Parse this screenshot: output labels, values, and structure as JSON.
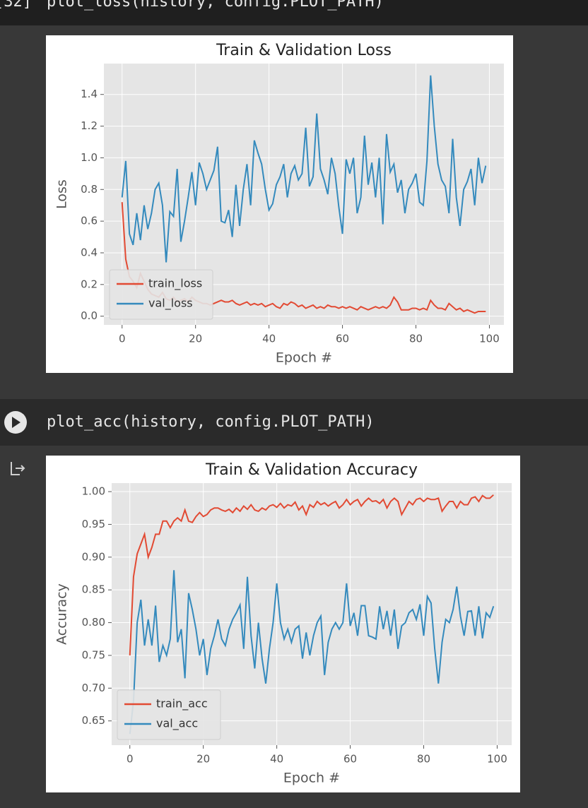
{
  "cells": [
    {
      "execution_count": "[32]",
      "code": "plot_loss(history, config.PLOT_PATH)"
    },
    {
      "code": "plot_acc(history, config.PLOT_PATH)"
    }
  ],
  "chart_data": [
    {
      "type": "line",
      "title": "Train & Validation Loss",
      "xlabel": "Epoch #",
      "ylabel": "Loss",
      "x": [
        0,
        1,
        2,
        3,
        4,
        5,
        6,
        7,
        8,
        9,
        10,
        11,
        12,
        13,
        14,
        15,
        16,
        17,
        18,
        19,
        20,
        21,
        22,
        23,
        24,
        25,
        26,
        27,
        28,
        29,
        30,
        31,
        32,
        33,
        34,
        35,
        36,
        37,
        38,
        39,
        40,
        41,
        42,
        43,
        44,
        45,
        46,
        47,
        48,
        49,
        50,
        51,
        52,
        53,
        54,
        55,
        56,
        57,
        58,
        59,
        60,
        61,
        62,
        63,
        64,
        65,
        66,
        67,
        68,
        69,
        70,
        71,
        72,
        73,
        74,
        75,
        76,
        77,
        78,
        79,
        80,
        81,
        82,
        83,
        84,
        85,
        86,
        87,
        88,
        89,
        90,
        91,
        92,
        93,
        94,
        95,
        96,
        97,
        98,
        99
      ],
      "series": [
        {
          "name": "train_loss",
          "color": "#E24A33",
          "values": [
            0.72,
            0.36,
            0.25,
            0.22,
            0.18,
            0.27,
            0.22,
            0.17,
            0.14,
            0.13,
            0.12,
            0.15,
            0.11,
            0.1,
            0.12,
            0.09,
            0.1,
            0.11,
            0.09,
            0.12,
            0.1,
            0.09,
            0.08,
            0.08,
            0.07,
            0.08,
            0.09,
            0.1,
            0.09,
            0.09,
            0.1,
            0.08,
            0.07,
            0.08,
            0.09,
            0.07,
            0.08,
            0.07,
            0.08,
            0.06,
            0.07,
            0.08,
            0.06,
            0.05,
            0.08,
            0.07,
            0.09,
            0.08,
            0.06,
            0.07,
            0.05,
            0.06,
            0.07,
            0.05,
            0.06,
            0.05,
            0.07,
            0.06,
            0.06,
            0.05,
            0.06,
            0.05,
            0.06,
            0.05,
            0.04,
            0.06,
            0.05,
            0.04,
            0.05,
            0.06,
            0.05,
            0.06,
            0.05,
            0.07,
            0.12,
            0.09,
            0.04,
            0.04,
            0.04,
            0.05,
            0.05,
            0.04,
            0.05,
            0.04,
            0.1,
            0.07,
            0.05,
            0.05,
            0.04,
            0.08,
            0.06,
            0.04,
            0.05,
            0.03,
            0.04,
            0.03,
            0.02,
            0.03,
            0.03,
            0.03
          ]
        },
        {
          "name": "val_loss",
          "color": "#348ABD",
          "values": [
            0.75,
            0.98,
            0.52,
            0.45,
            0.65,
            0.48,
            0.7,
            0.55,
            0.65,
            0.8,
            0.84,
            0.7,
            0.34,
            0.66,
            0.63,
            0.93,
            0.47,
            0.6,
            0.75,
            0.91,
            0.7,
            0.97,
            0.9,
            0.8,
            0.86,
            0.92,
            1.07,
            0.6,
            0.59,
            0.67,
            0.5,
            0.83,
            0.57,
            0.8,
            0.96,
            0.7,
            1.11,
            1.03,
            0.96,
            0.8,
            0.67,
            0.71,
            0.83,
            0.88,
            0.96,
            0.75,
            0.9,
            0.95,
            0.86,
            0.9,
            1.19,
            0.82,
            0.88,
            1.28,
            0.93,
            0.86,
            0.77,
            1.0,
            0.9,
            0.69,
            0.52,
            0.99,
            0.9,
            1.0,
            0.65,
            0.75,
            1.14,
            0.83,
            0.97,
            0.75,
            1.0,
            0.58,
            1.15,
            0.91,
            0.96,
            0.78,
            0.86,
            0.65,
            0.8,
            0.84,
            0.9,
            0.72,
            0.7,
            0.98,
            1.52,
            1.2,
            0.96,
            0.86,
            0.82,
            0.65,
            1.12,
            0.75,
            0.57,
            0.8,
            0.85,
            0.93,
            0.7,
            1.0,
            0.84,
            0.95
          ]
        }
      ],
      "xlim": [
        -4.95,
        103.95
      ],
      "ylim": [
        -0.055,
        1.595
      ],
      "xticks": [
        0,
        20,
        40,
        60,
        80,
        100
      ],
      "yticks": [
        {
          "value": 0,
          "label": "0.0"
        },
        0.2,
        0.4,
        0.6,
        0.8,
        {
          "value": 1,
          "label": "1.0"
        },
        1.2,
        1.4
      ],
      "grid": true,
      "legend": "lower left"
    },
    {
      "type": "line",
      "title": "Train & Validation Accuracy",
      "xlabel": "Epoch #",
      "ylabel": "Accuracy",
      "x": [
        0,
        1,
        2,
        3,
        4,
        5,
        6,
        7,
        8,
        9,
        10,
        11,
        12,
        13,
        14,
        15,
        16,
        17,
        18,
        19,
        20,
        21,
        22,
        23,
        24,
        25,
        26,
        27,
        28,
        29,
        30,
        31,
        32,
        33,
        34,
        35,
        36,
        37,
        38,
        39,
        40,
        41,
        42,
        43,
        44,
        45,
        46,
        47,
        48,
        49,
        50,
        51,
        52,
        53,
        54,
        55,
        56,
        57,
        58,
        59,
        60,
        61,
        62,
        63,
        64,
        65,
        66,
        67,
        68,
        69,
        70,
        71,
        72,
        73,
        74,
        75,
        76,
        77,
        78,
        79,
        80,
        81,
        82,
        83,
        84,
        85,
        86,
        87,
        88,
        89,
        90,
        91,
        92,
        93,
        94,
        95,
        96,
        97,
        98,
        99
      ],
      "series": [
        {
          "name": "train_acc",
          "color": "#E24A33",
          "values": [
            0.75,
            0.87,
            0.905,
            0.92,
            0.935,
            0.9,
            0.915,
            0.935,
            0.935,
            0.955,
            0.955,
            0.945,
            0.955,
            0.96,
            0.955,
            0.972,
            0.955,
            0.953,
            0.962,
            0.968,
            0.962,
            0.965,
            0.972,
            0.975,
            0.975,
            0.972,
            0.97,
            0.973,
            0.968,
            0.975,
            0.97,
            0.978,
            0.973,
            0.98,
            0.972,
            0.97,
            0.975,
            0.972,
            0.978,
            0.98,
            0.976,
            0.982,
            0.975,
            0.98,
            0.978,
            0.984,
            0.972,
            0.978,
            0.965,
            0.98,
            0.976,
            0.985,
            0.98,
            0.983,
            0.978,
            0.982,
            0.985,
            0.975,
            0.98,
            0.988,
            0.98,
            0.985,
            0.988,
            0.978,
            0.985,
            0.99,
            0.985,
            0.986,
            0.982,
            0.988,
            0.975,
            0.985,
            0.99,
            0.985,
            0.965,
            0.975,
            0.985,
            0.98,
            0.988,
            0.99,
            0.985,
            0.99,
            0.988,
            0.988,
            0.99,
            0.97,
            0.978,
            0.985,
            0.985,
            0.975,
            0.985,
            0.98,
            0.98,
            0.99,
            0.992,
            0.985,
            0.994,
            0.99,
            0.99,
            0.995
          ]
        },
        {
          "name": "val_acc",
          "color": "#348ABD",
          "values": [
            0.63,
            0.68,
            0.8,
            0.835,
            0.765,
            0.805,
            0.765,
            0.826,
            0.74,
            0.765,
            0.75,
            0.775,
            0.88,
            0.77,
            0.79,
            0.715,
            0.845,
            0.82,
            0.79,
            0.75,
            0.775,
            0.72,
            0.76,
            0.78,
            0.805,
            0.775,
            0.765,
            0.79,
            0.805,
            0.815,
            0.827,
            0.76,
            0.87,
            0.78,
            0.73,
            0.8,
            0.745,
            0.707,
            0.76,
            0.8,
            0.86,
            0.8,
            0.775,
            0.79,
            0.77,
            0.79,
            0.795,
            0.745,
            0.785,
            0.75,
            0.78,
            0.8,
            0.81,
            0.72,
            0.77,
            0.79,
            0.8,
            0.79,
            0.8,
            0.86,
            0.795,
            0.815,
            0.78,
            0.826,
            0.826,
            0.78,
            0.778,
            0.775,
            0.825,
            0.79,
            0.818,
            0.78,
            0.82,
            0.76,
            0.795,
            0.8,
            0.815,
            0.82,
            0.805,
            0.828,
            0.78,
            0.84,
            0.83,
            0.76,
            0.707,
            0.77,
            0.805,
            0.8,
            0.82,
            0.855,
            0.81,
            0.78,
            0.817,
            0.818,
            0.78,
            0.825,
            0.776,
            0.815,
            0.808,
            0.825
          ]
        }
      ],
      "xlim": [
        -4.95,
        103.95
      ],
      "ylim": [
        0.613,
        1.013
      ],
      "xticks": [
        0,
        20,
        40,
        60,
        80,
        100
      ],
      "yticks": [
        0.65,
        {
          "value": 0.7,
          "label": "0.70"
        },
        0.75,
        {
          "value": 0.8,
          "label": "0.80"
        },
        0.85,
        {
          "value": 0.9,
          "label": "0.90"
        },
        0.95,
        {
          "value": 1,
          "label": "1.00"
        }
      ],
      "grid": true,
      "legend": "lower left"
    }
  ]
}
